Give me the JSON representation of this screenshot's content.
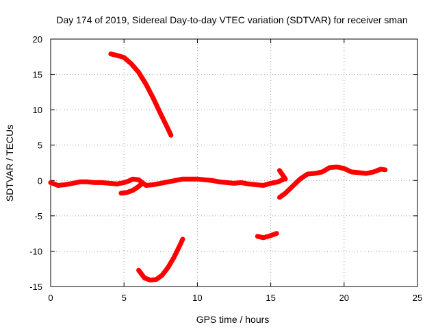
{
  "chart_data": {
    "type": "line",
    "title": "Day 174 of 2019, Sidereal Day-to-day VTEC variation (SDTVAR) for receiver sman",
    "xlabel": "GPS time / hours",
    "ylabel": "SDTVAR / TECUs",
    "xlim": [
      0,
      25
    ],
    "ylim": [
      -15,
      20
    ],
    "xticks": [
      "0",
      "5",
      "10",
      "15",
      "20",
      "25"
    ],
    "yticks": [
      "-15",
      "-10",
      "-5",
      "0",
      "5",
      "10",
      "15",
      "20"
    ],
    "grid": true,
    "color": "#ff0000",
    "series": [
      {
        "name": "arc-main",
        "x": [
          0,
          0.5,
          1,
          1.5,
          2,
          2.5,
          3,
          3.5,
          4,
          4.5,
          5,
          5.3,
          5.6,
          6,
          6.5,
          7,
          7.5,
          8,
          8.5,
          9,
          9.5,
          10,
          10.5,
          11,
          11.5,
          12,
          12.5,
          13,
          13.5,
          14,
          14.5,
          15,
          15.5,
          15.9
        ],
        "y": [
          -0.3,
          -0.7,
          -0.6,
          -0.4,
          -0.2,
          -0.2,
          -0.3,
          -0.3,
          -0.4,
          -0.5,
          -0.3,
          -0.1,
          0.2,
          0.1,
          -0.7,
          -0.6,
          -0.4,
          -0.2,
          0.0,
          0.2,
          0.2,
          0.2,
          0.1,
          0.0,
          -0.2,
          -0.3,
          -0.4,
          -0.3,
          -0.5,
          -0.6,
          -0.7,
          -0.4,
          -0.2,
          0.2
        ]
      },
      {
        "name": "arc-late",
        "x": [
          15.6,
          16.0,
          16.5,
          17.0,
          17.5,
          18.0,
          18.5,
          19.0,
          19.5,
          20.0,
          20.5,
          21.0,
          21.5,
          22.0,
          22.5,
          22.8
        ],
        "y": [
          -2.4,
          -1.8,
          -0.8,
          0.2,
          0.9,
          1.0,
          1.2,
          1.8,
          1.9,
          1.7,
          1.2,
          1.1,
          1.0,
          1.2,
          1.6,
          1.5
        ]
      },
      {
        "name": "arc-short",
        "x": [
          15.6,
          15.8,
          16.0
        ],
        "y": [
          1.4,
          0.8,
          0.2
        ]
      },
      {
        "name": "arc-dip",
        "x": [
          4.8,
          5.2,
          5.6,
          5.9,
          6.2
        ],
        "y": [
          -1.8,
          -1.7,
          -1.4,
          -1.0,
          -0.5
        ]
      },
      {
        "name": "arc-high",
        "x": [
          4.1,
          4.5,
          5.0,
          5.5,
          6.0,
          6.5,
          7.0,
          7.5,
          8.0,
          8.2
        ],
        "y": [
          17.9,
          17.7,
          17.4,
          16.5,
          15.3,
          13.6,
          11.6,
          9.4,
          7.3,
          6.4
        ]
      },
      {
        "name": "arc-low",
        "x": [
          6.0,
          6.4,
          6.8,
          7.2,
          7.6,
          8.0,
          8.4,
          8.8,
          9.0
        ],
        "y": [
          -12.7,
          -13.8,
          -14.1,
          -14.0,
          -13.4,
          -12.3,
          -10.9,
          -9.2,
          -8.3
        ]
      },
      {
        "name": "arc-mid",
        "x": [
          14.1,
          14.5,
          15.0,
          15.4
        ],
        "y": [
          -7.9,
          -8.1,
          -7.8,
          -7.5
        ]
      }
    ]
  }
}
